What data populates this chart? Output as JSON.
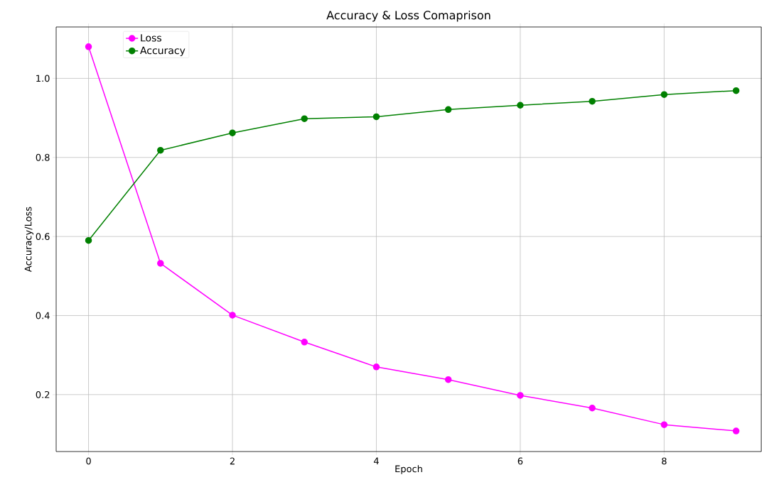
{
  "chart_data": {
    "type": "line",
    "title": "Accuracy & Loss Comaprison",
    "xlabel": "Epoch",
    "ylabel": "Accuracy/Loss",
    "x": [
      0,
      1,
      2,
      3,
      4,
      5,
      6,
      7,
      8,
      9
    ],
    "series": [
      {
        "name": "Loss",
        "color": "#ff00ff",
        "values": [
          1.08,
          0.532,
          0.401,
          0.333,
          0.27,
          0.238,
          0.198,
          0.166,
          0.124,
          0.108
        ]
      },
      {
        "name": "Accuracy",
        "color": "#008000",
        "values": [
          0.59,
          0.818,
          0.862,
          0.898,
          0.903,
          0.921,
          0.932,
          0.942,
          0.959,
          0.969
        ]
      }
    ],
    "xlim": [
      -0.45,
      9.35
    ],
    "ylim": [
      0.056,
      1.13
    ],
    "xticks": [
      0,
      2,
      4,
      6,
      8
    ],
    "yticks": [
      0.2,
      0.4,
      0.6,
      0.8,
      {
        "value": 1,
        "label": "1.0"
      }
    ],
    "grid": true,
    "legend": "top left",
    "marker": "circle",
    "line_style": "solid"
  }
}
